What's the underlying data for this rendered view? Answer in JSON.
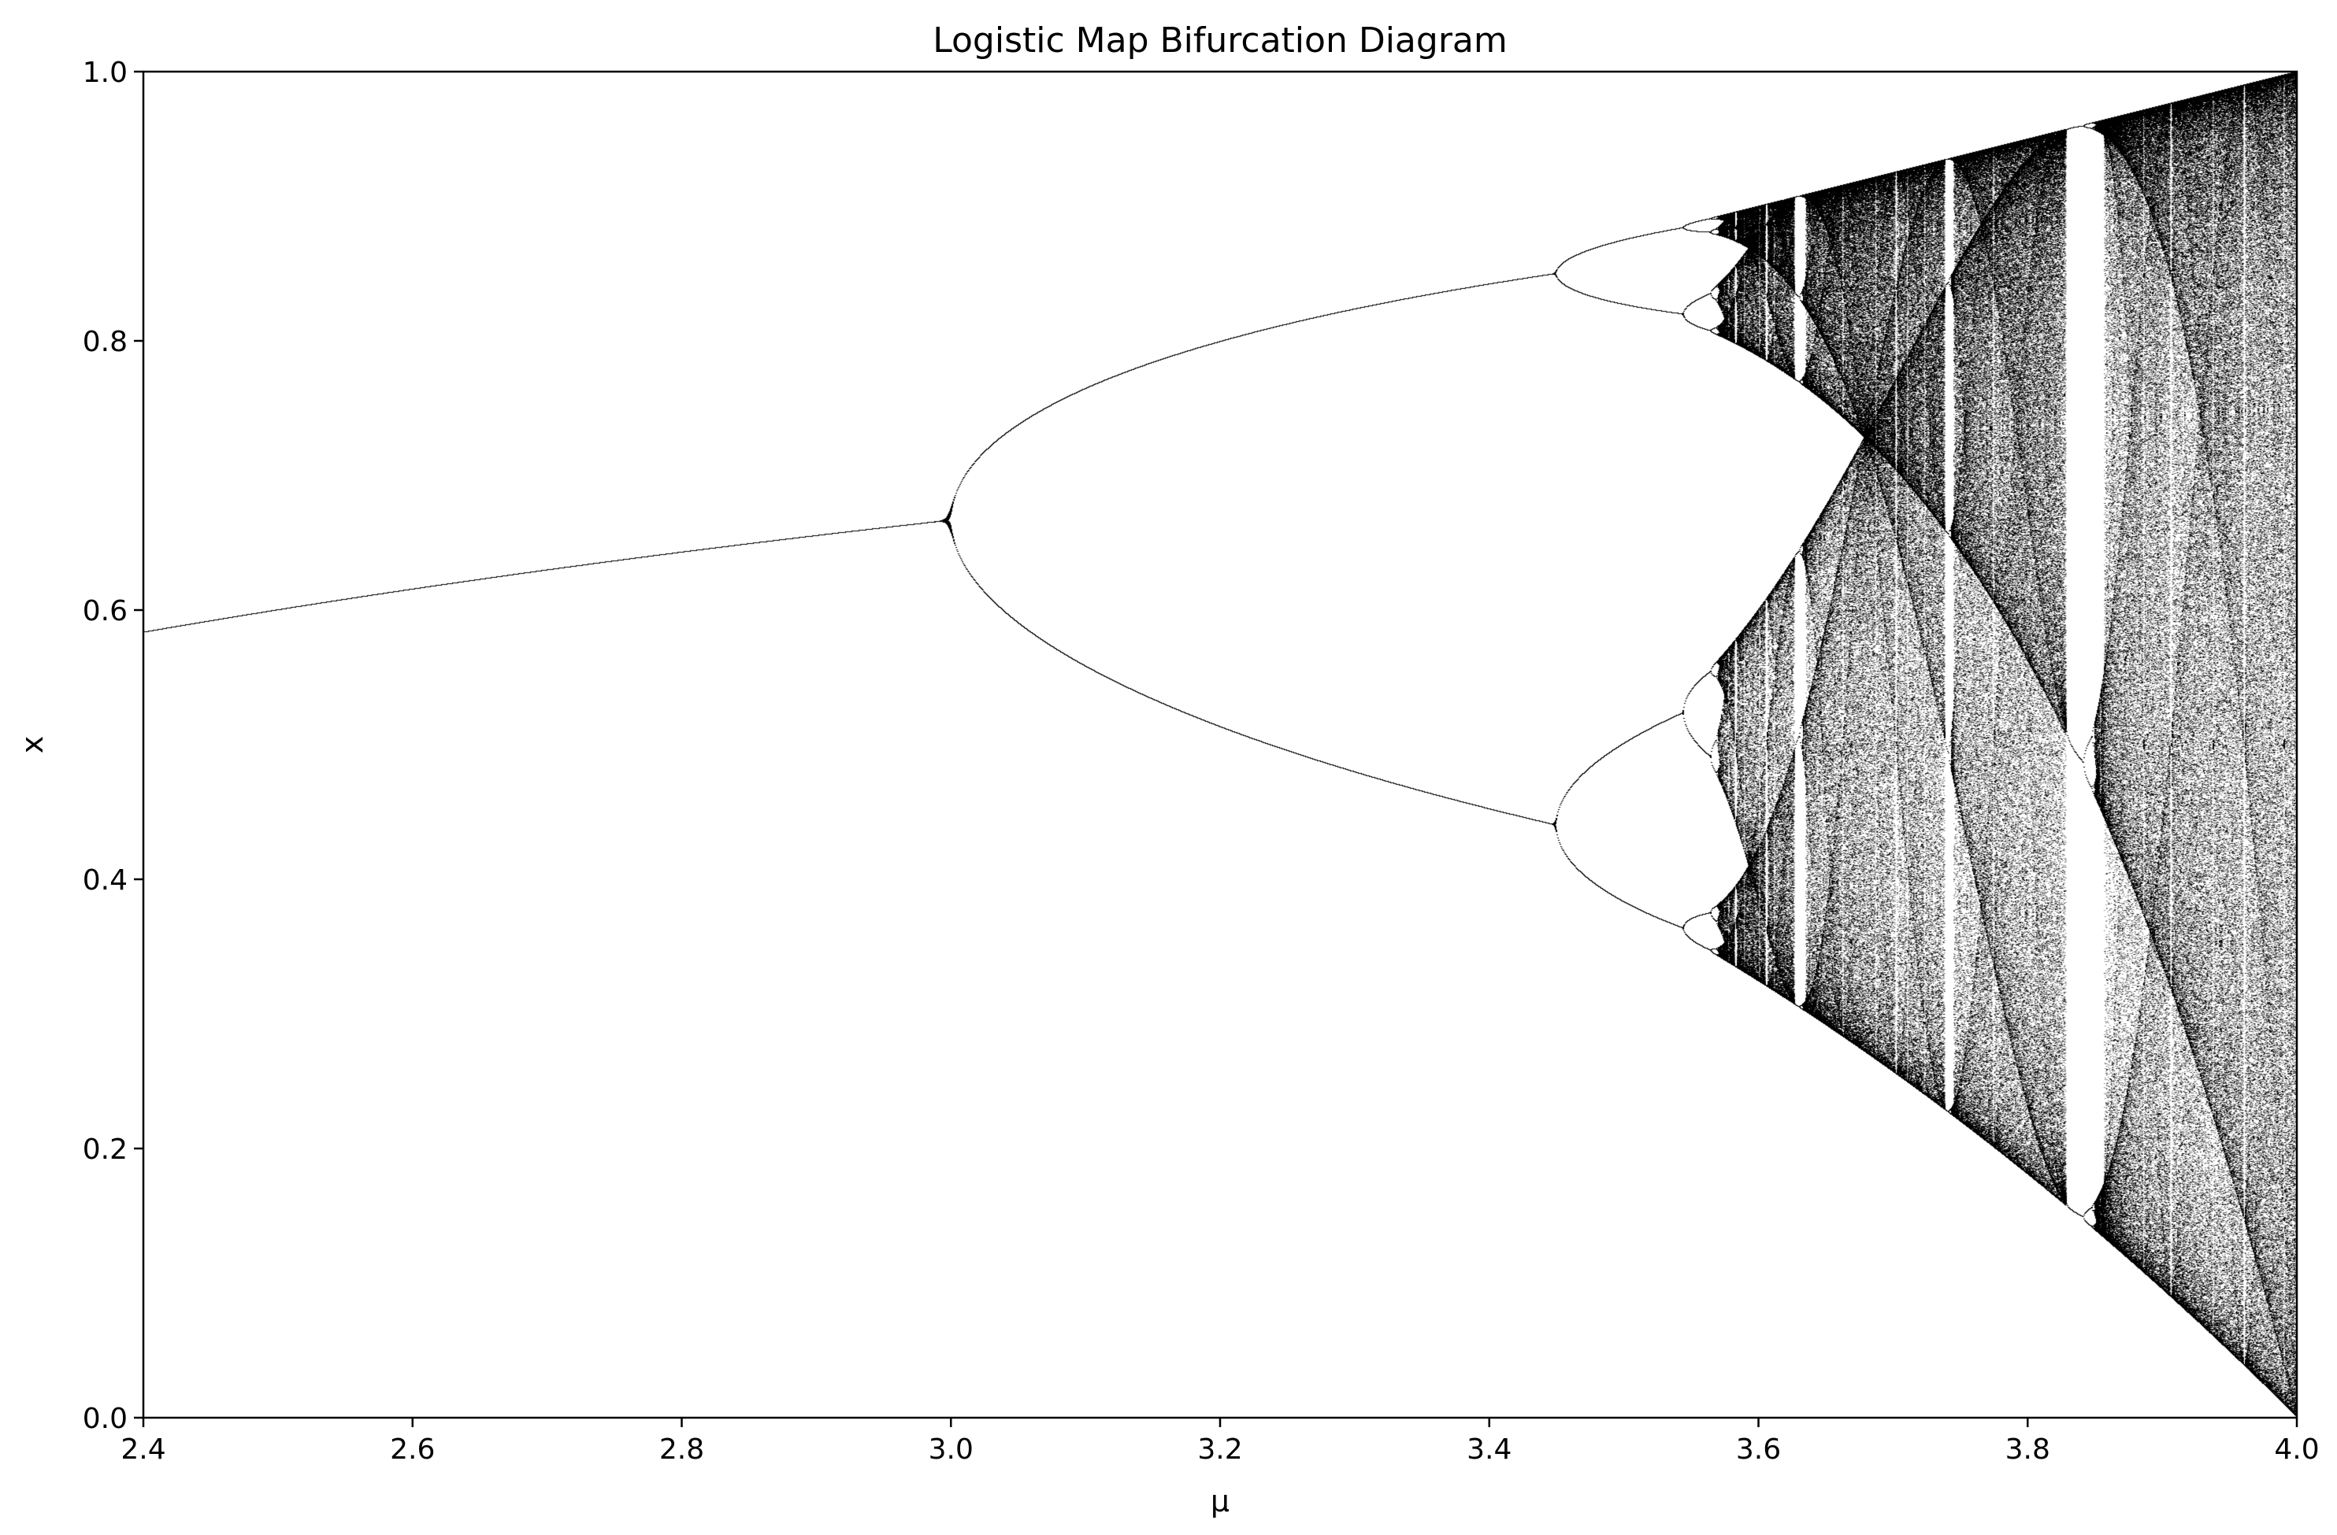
{
  "chart_data": {
    "type": "scatter",
    "title": "Logistic Map Bifurcation Diagram",
    "xlabel": "μ",
    "ylabel": "x",
    "xlim": [
      2.4,
      4.0
    ],
    "ylim": [
      0.0,
      1.0
    ],
    "map": "x_next = mu * x * (1 - x)",
    "point_color": "#000000",
    "background": "#ffffff",
    "grid": false,
    "legend": "none",
    "xticks": [
      {
        "value": 2.4,
        "label": "2.4"
      },
      {
        "value": 2.6,
        "label": "2.6"
      },
      {
        "value": 2.8,
        "label": "2.8"
      },
      {
        "value": 3.0,
        "label": "3.0"
      },
      {
        "value": 3.2,
        "label": "3.2"
      },
      {
        "value": 3.4,
        "label": "3.4"
      },
      {
        "value": 3.6,
        "label": "3.6"
      },
      {
        "value": 3.8,
        "label": "3.8"
      },
      {
        "value": 4.0,
        "label": "4.0"
      }
    ],
    "yticks": [
      {
        "value": 0.0,
        "label": "0.0"
      },
      {
        "value": 0.2,
        "label": "0.2"
      },
      {
        "value": 0.4,
        "label": "0.4"
      },
      {
        "value": 0.6,
        "label": "0.6"
      },
      {
        "value": 0.8,
        "label": "0.8"
      },
      {
        "value": 1.0,
        "label": "1.0"
      }
    ],
    "key_points": [
      {
        "mu": 2.4,
        "x": 0.583
      },
      {
        "mu": 3.0,
        "x": 0.667
      },
      {
        "mu": 3.449,
        "x": 0.85
      },
      {
        "mu": 3.449,
        "x": 0.44
      },
      {
        "mu": 3.544,
        "x": 0.885
      },
      {
        "mu": 3.544,
        "x": 0.82
      },
      {
        "mu": 3.544,
        "x": 0.53
      },
      {
        "mu": 3.544,
        "x": 0.37
      },
      {
        "mu": 3.83,
        "x": 0.96
      },
      {
        "mu": 3.83,
        "x": 0.5
      },
      {
        "mu": 3.83,
        "x": 0.156
      },
      {
        "mu": 4.0,
        "x": 1.0
      },
      {
        "mu": 4.0,
        "x": 0.0
      }
    ]
  }
}
